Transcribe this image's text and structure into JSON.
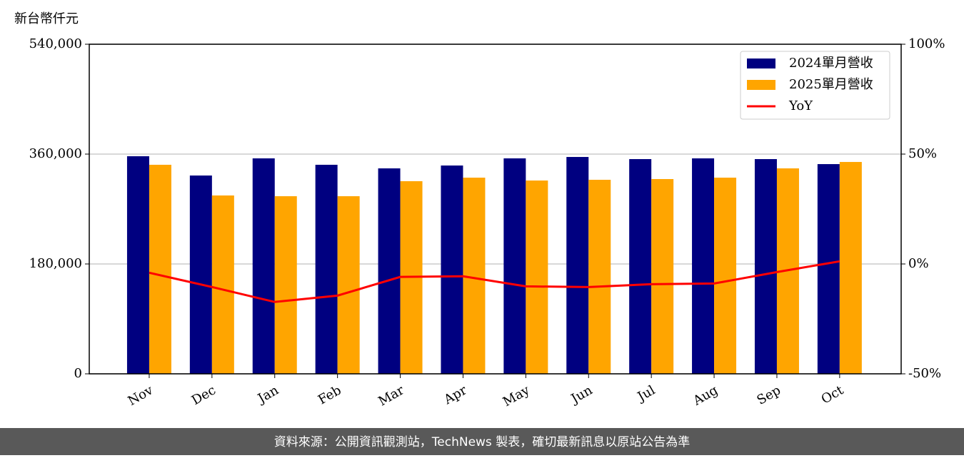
{
  "chart_data": {
    "type": "bar_line",
    "y_axis_label": "新台幣仟元",
    "categories": [
      "Nov",
      "Dec",
      "Jan",
      "Feb",
      "Mar",
      "Apr",
      "May",
      "Jun",
      "Jul",
      "Aug",
      "Sep",
      "Oct"
    ],
    "series": [
      {
        "name": "2024單月營收",
        "type": "bar",
        "color": "#000080",
        "values": [
          356500,
          324900,
          353000,
          342500,
          336600,
          341300,
          353000,
          355300,
          351800,
          353000,
          351800,
          343600
        ]
      },
      {
        "name": "2025單月營收",
        "type": "bar",
        "color": "#ffa500",
        "values": [
          342500,
          292200,
          291000,
          291000,
          315600,
          321400,
          316700,
          317900,
          319100,
          321400,
          336600,
          347100
        ]
      },
      {
        "name": "YoY",
        "type": "line",
        "axis": "y2",
        "color": "#ff0000",
        "values": [
          -4.0,
          -10.5,
          -17.3,
          -14.4,
          -5.9,
          -5.6,
          -10.2,
          -10.5,
          -9.2,
          -8.9,
          -3.7,
          1.2
        ]
      }
    ],
    "ylim": [
      0,
      540000
    ],
    "yticks": [
      0,
      {
        "value": 180000,
        "label": "180,000"
      },
      {
        "value": 360000,
        "label": "360,000"
      },
      {
        "value": 540000,
        "label": "540,000"
      }
    ],
    "y2lim": [
      -50,
      100
    ],
    "y2ticks": [
      {
        "value": -50,
        "label": "-50%"
      },
      {
        "value": 0,
        "label": "0%"
      },
      {
        "value": 50,
        "label": "50%"
      },
      {
        "value": 100,
        "label": "100%"
      }
    ],
    "grid": true,
    "legend": "upper right",
    "footer": "資料來源：公開資訊觀測站，TechNews 製表，確切最新訊息以原站公告為準"
  }
}
